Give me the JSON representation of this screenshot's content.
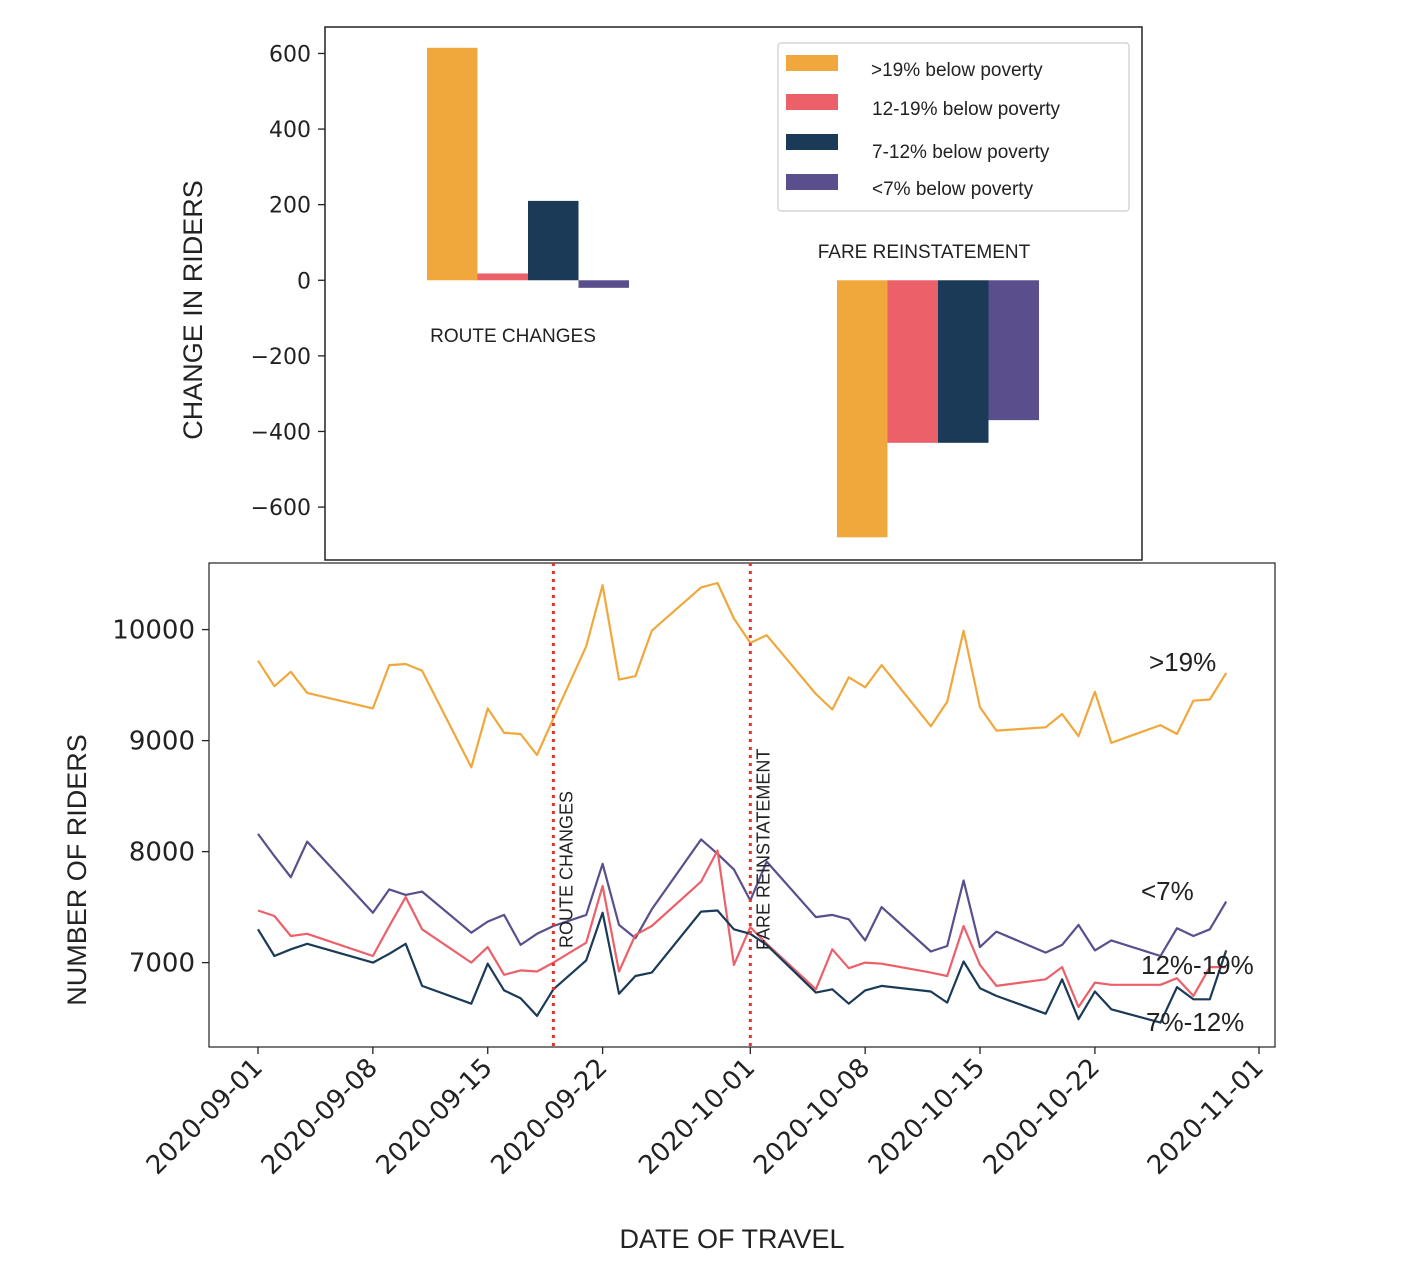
{
  "colors": {
    "gt19": "#F0A83C",
    "r12_19": "#EC6069",
    "r7_12": "#1B3A57",
    "lt7": "#5A4E8C",
    "event_line": "#E5322D",
    "axis": "#222222"
  },
  "chart_data": [
    {
      "type": "bar",
      "ylabel": "CHANGE IN RIDERS",
      "ylim": [
        -740,
        670
      ],
      "yticks": [
        600,
        400,
        200,
        0,
        -200,
        -400,
        -600
      ],
      "ytick_labels": [
        "600",
        "400",
        "200",
        "0",
        "−200",
        "−400",
        "−600"
      ],
      "grid": false,
      "legend_position": "top-right",
      "groups": [
        {
          "label": "ROUTE CHANGES",
          "values": [
            615,
            18,
            210,
            -20
          ]
        },
        {
          "label": "FARE REINSTATEMENT",
          "values": [
            -680,
            -430,
            -430,
            -370
          ]
        }
      ],
      "series": [
        {
          "name": ">19% below poverty",
          "color_key": "gt19"
        },
        {
          "name": "12-19% below poverty",
          "color_key": "r12_19"
        },
        {
          "name": "7-12% below poverty",
          "color_key": "r7_12"
        },
        {
          "name": "<7% below poverty",
          "color_key": "lt7"
        }
      ]
    },
    {
      "type": "line",
      "xlabel": "DATE OF TRAVEL",
      "ylabel": "NUMBER OF RIDERS",
      "ylim": [
        6240,
        10600
      ],
      "yticks": [
        7000,
        8000,
        9000,
        10000
      ],
      "ytick_labels": [
        "7000",
        "8000",
        "9000",
        "10000"
      ],
      "x_start": "2020-09-01",
      "x_end": "2020-11-01",
      "xticks": [
        "2020-09-01",
        "2020-09-08",
        "2020-09-15",
        "2020-09-22",
        "2020-10-01",
        "2020-10-08",
        "2020-10-15",
        "2020-10-22",
        "2020-11-01"
      ],
      "grid": false,
      "x": [
        "2020-09-01",
        "2020-09-02",
        "2020-09-03",
        "2020-09-04",
        "2020-09-08",
        "2020-09-09",
        "2020-09-10",
        "2020-09-11",
        "2020-09-14",
        "2020-09-15",
        "2020-09-16",
        "2020-09-17",
        "2020-09-18",
        "2020-09-19",
        "2020-09-21",
        "2020-09-22",
        "2020-09-23",
        "2020-09-24",
        "2020-09-25",
        "2020-09-28",
        "2020-09-29",
        "2020-09-30",
        "2020-10-01",
        "2020-10-02",
        "2020-10-05",
        "2020-10-06",
        "2020-10-07",
        "2020-10-08",
        "2020-10-09",
        "2020-10-12",
        "2020-10-13",
        "2020-10-14",
        "2020-10-15",
        "2020-10-16",
        "2020-10-19",
        "2020-10-20",
        "2020-10-21",
        "2020-10-22",
        "2020-10-23",
        "2020-10-26",
        "2020-10-27",
        "2020-10-28",
        "2020-10-29",
        "2020-10-30"
      ],
      "series": [
        {
          "name": ">19%",
          "color_key": "gt19",
          "values": [
            9720,
            9490,
            9620,
            9430,
            9290,
            9680,
            9690,
            9630,
            8760,
            9290,
            9070,
            9060,
            8870,
            9200,
            9850,
            10400,
            9550,
            9580,
            9990,
            10380,
            10420,
            10100,
            9880,
            9950,
            9420,
            9280,
            9570,
            9480,
            9680,
            9130,
            9350,
            9990,
            9300,
            9090,
            9120,
            9240,
            9040,
            9440,
            8980,
            9140,
            9060,
            9360,
            9370,
            9610
          ]
        },
        {
          "name": "<7%",
          "color_key": "lt7",
          "values": [
            8160,
            7960,
            7770,
            8090,
            7450,
            7660,
            7610,
            7640,
            7270,
            7370,
            7430,
            7160,
            7260,
            7330,
            7430,
            7890,
            7340,
            7220,
            7480,
            8110,
            7980,
            7840,
            7560,
            7910,
            7410,
            7430,
            7390,
            7200,
            7500,
            7100,
            7150,
            7740,
            7140,
            7280,
            7090,
            7160,
            7340,
            7110,
            7200,
            7060,
            7310,
            7240,
            7300,
            7550
          ]
        },
        {
          "name": "12%-19%",
          "color_key": "r12_19",
          "values": [
            7470,
            7420,
            7240,
            7260,
            7060,
            7330,
            7590,
            7300,
            7000,
            7140,
            6890,
            6930,
            6920,
            7000,
            7180,
            7690,
            6920,
            7250,
            7330,
            7730,
            8010,
            6980,
            7320,
            7170,
            6760,
            7120,
            6950,
            7000,
            6990,
            6910,
            6880,
            7330,
            6980,
            6790,
            6850,
            6960,
            6600,
            6820,
            6800,
            6800,
            6860,
            6700,
            6960,
            6960
          ]
        },
        {
          "name": "7%-12%",
          "color_key": "r7_12",
          "values": [
            7300,
            7060,
            7120,
            7170,
            7000,
            7080,
            7170,
            6790,
            6630,
            6990,
            6750,
            6680,
            6520,
            6760,
            7020,
            7450,
            6720,
            6880,
            6910,
            7460,
            7470,
            7300,
            7260,
            7160,
            6730,
            6760,
            6630,
            6750,
            6790,
            6740,
            6640,
            7010,
            6770,
            6700,
            6540,
            6850,
            6490,
            6740,
            6580,
            6460,
            6780,
            6670,
            6670,
            7110
          ]
        }
      ],
      "annotations": [
        {
          "label": "ROUTE CHANGES",
          "date": "2020-09-19"
        },
        {
          "label": "FARE REINSTATEMENT",
          "date": "2020-10-01"
        }
      ],
      "line_labels": [
        ">19%",
        "<7%",
        "12%-19%",
        "7%-12%"
      ]
    }
  ]
}
